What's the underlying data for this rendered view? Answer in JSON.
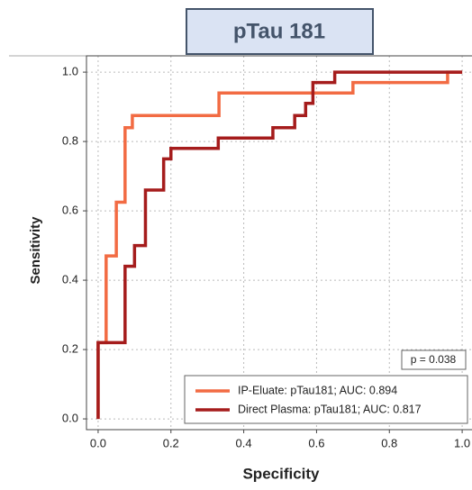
{
  "chart_data": {
    "type": "line",
    "title": "pTau 181",
    "xlabel": "Specificity",
    "ylabel": "Sensitivity",
    "xlim": [
      -0.032,
      1.027
    ],
    "ylim": [
      -0.031,
      1.047
    ],
    "xticks": [
      {
        "value": 0,
        "label": "0.0"
      },
      0.2,
      0.4,
      0.6,
      0.8,
      {
        "value": 1,
        "label": "1.0"
      }
    ],
    "yticks": [
      {
        "value": 0,
        "label": "0.0"
      },
      0.2,
      0.4,
      0.6,
      0.8,
      {
        "value": 1,
        "label": "1.0"
      }
    ],
    "grid": true,
    "legend": "lower right",
    "annotation": "p = 0.038",
    "series": [
      {
        "name": "IP-Eluate: pTau181; AUC: 0.894",
        "color": "#f26b43",
        "x": [
          0,
          0,
          0.022,
          0.022,
          0.05,
          0.05,
          0.074,
          0.074,
          0.094,
          0.094,
          0.332,
          0.332,
          0.7,
          0.7,
          0.96,
          0.96,
          1
        ],
        "values": [
          0,
          0.22,
          0.22,
          0.47,
          0.47,
          0.625,
          0.625,
          0.84,
          0.84,
          0.875,
          0.875,
          0.94,
          0.94,
          0.97,
          0.97,
          1,
          1
        ]
      },
      {
        "name": "Direct Plasma: pTau181; AUC: 0.817",
        "color": "#a51c1c",
        "x": [
          0,
          0,
          0.074,
          0.074,
          0.1,
          0.1,
          0.13,
          0.13,
          0.18,
          0.18,
          0.2,
          0.2,
          0.33,
          0.33,
          0.48,
          0.48,
          0.54,
          0.54,
          0.57,
          0.57,
          0.59,
          0.59,
          0.65,
          0.65,
          1
        ],
        "values": [
          0,
          0.22,
          0.22,
          0.44,
          0.44,
          0.5,
          0.5,
          0.66,
          0.66,
          0.75,
          0.75,
          0.78,
          0.78,
          0.81,
          0.81,
          0.84,
          0.84,
          0.875,
          0.875,
          0.91,
          0.91,
          0.97,
          0.97,
          1,
          1
        ]
      }
    ]
  }
}
